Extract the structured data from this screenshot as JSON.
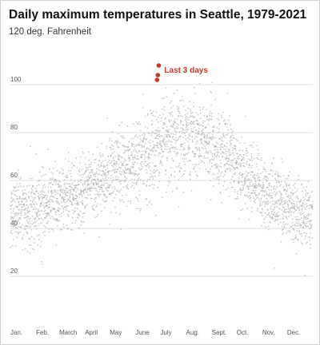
{
  "chart_data": {
    "type": "scatter",
    "title": "Daily maximum temperatures in Seattle, 1979-2021",
    "ylabel_top": "120 deg. Fahrenheit",
    "ylim": [
      0,
      120
    ],
    "y_ticks": [
      20,
      40,
      60,
      80,
      100
    ],
    "y_tick_labels": [
      "20",
      "40",
      "60",
      "80",
      "100"
    ],
    "grid": true,
    "x_ticks": [
      "Jan.",
      "Feb.",
      "March",
      "April",
      "May",
      "June",
      "July",
      "Aug.",
      "Sept.",
      "Oct.",
      "Nov.",
      "Dec."
    ],
    "x_tick_day_of_year": [
      1,
      32,
      60,
      91,
      121,
      152,
      182,
      213,
      244,
      274,
      305,
      335
    ],
    "xlim_day_of_year": [
      1,
      366
    ],
    "series": [
      {
        "color": "#9aa09a",
        "years": "1979-2021",
        "seasonal_typical_max_by_month": {
          "Jan.": 47,
          "Feb.": 50,
          "March": 54,
          "April": 59,
          "May": 66,
          "June": 71,
          "July": 78,
          "Aug.": 78,
          "Sept.": 72,
          "Oct.": 61,
          "Nov.": 52,
          "Dec.": 46
        },
        "typical_spread_deg": 7
      },
      {
        "name": "Last 3 days",
        "color": "#c0392b",
        "points": [
          {
            "x": 178,
            "y": 102
          },
          {
            "x": 179,
            "y": 104
          },
          {
            "x": 180,
            "y": 108
          }
        ]
      }
    ],
    "annotations": [
      {
        "text": "Last 3 days",
        "x": 181,
        "y": 106
      }
    ]
  }
}
